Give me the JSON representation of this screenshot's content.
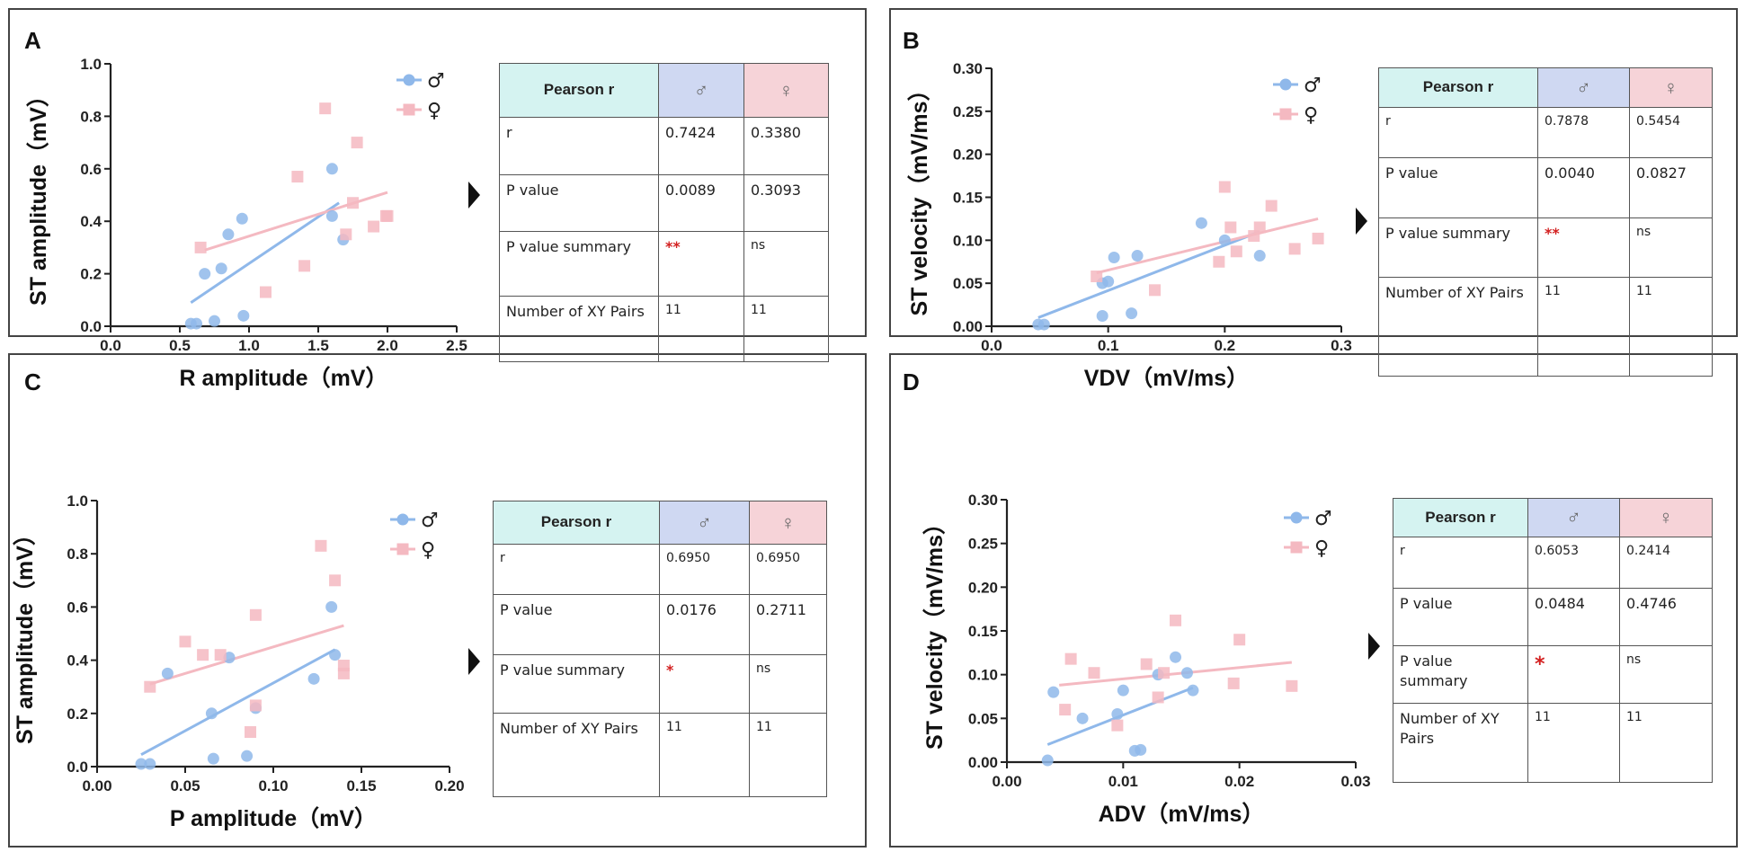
{
  "panels": [
    {
      "letter": "A",
      "chart_data": {
        "type": "scatter",
        "xlabel": "R amplitude（mV）",
        "ylabel": "ST amplitude（mV）",
        "xlim": [
          0.0,
          2.5
        ],
        "ylim": [
          0.0,
          1.0
        ],
        "xticks": [
          "0.0",
          "0.5",
          "1.0",
          "1.5",
          "2.0",
          "2.5"
        ],
        "yticks": [
          "0.0",
          "0.2",
          "0.4",
          "0.6",
          "0.8",
          "1.0"
        ],
        "legend": "top-right",
        "series": [
          {
            "name": "♂",
            "marker": "circle",
            "color": "#8fb8ea",
            "points": [
              [
                0.58,
                0.01
              ],
              [
                0.62,
                0.01
              ],
              [
                0.68,
                0.2
              ],
              [
                0.75,
                0.02
              ],
              [
                0.8,
                0.22
              ],
              [
                0.85,
                0.35
              ],
              [
                0.95,
                0.41
              ],
              [
                0.96,
                0.04
              ],
              [
                1.6,
                0.6
              ],
              [
                1.6,
                0.42
              ],
              [
                1.68,
                0.33
              ]
            ],
            "fit": [
              [
                0.58,
                0.09
              ],
              [
                1.65,
                0.47
              ]
            ]
          },
          {
            "name": "♀",
            "marker": "square",
            "color": "#f4b9c1",
            "points": [
              [
                0.65,
                0.3
              ],
              [
                1.12,
                0.13
              ],
              [
                1.35,
                0.57
              ],
              [
                1.4,
                0.23
              ],
              [
                1.55,
                0.83
              ],
              [
                1.7,
                0.35
              ],
              [
                1.75,
                0.47
              ],
              [
                1.78,
                0.7
              ],
              [
                1.9,
                0.38
              ],
              [
                1.99,
                0.42
              ],
              [
                2.0,
                0.42
              ]
            ],
            "fit": [
              [
                0.68,
                0.29
              ],
              [
                2.0,
                0.51
              ]
            ]
          }
        ]
      },
      "table": {
        "header": [
          "Pearson r",
          "♂",
          "♀"
        ],
        "rows": [
          [
            "r",
            "0.7424",
            "0.3380"
          ],
          [
            "P value",
            "0.0089",
            "0.3093"
          ],
          [
            "P value summary",
            "**",
            "ns"
          ],
          [
            "Number of XY Pairs",
            "11",
            "11"
          ]
        ]
      }
    },
    {
      "letter": "B",
      "chart_data": {
        "type": "scatter",
        "xlabel": "VDV（mV/ms）",
        "ylabel": "ST velocity（mV/ms）",
        "xlim": [
          0.0,
          0.3
        ],
        "ylim": [
          0.0,
          0.3
        ],
        "xticks": [
          "0.0",
          "0.1",
          "0.2",
          "0.3"
        ],
        "yticks": [
          "0.00",
          "0.05",
          "0.10",
          "0.15",
          "0.20",
          "0.25",
          "0.30"
        ],
        "legend": "top-right",
        "series": [
          {
            "name": "♂",
            "marker": "circle",
            "color": "#8fb8ea",
            "points": [
              [
                0.04,
                0.002
              ],
              [
                0.045,
                0.002
              ],
              [
                0.095,
                0.05
              ],
              [
                0.095,
                0.012
              ],
              [
                0.1,
                0.052
              ],
              [
                0.105,
                0.08
              ],
              [
                0.12,
                0.015
              ],
              [
                0.125,
                0.082
              ],
              [
                0.18,
                0.12
              ],
              [
                0.2,
                0.1
              ],
              [
                0.23,
                0.082
              ]
            ],
            "fit": [
              [
                0.04,
                0.01
              ],
              [
                0.23,
                0.11
              ]
            ]
          },
          {
            "name": "♀",
            "marker": "square",
            "color": "#f4b9c1",
            "points": [
              [
                0.09,
                0.058
              ],
              [
                0.14,
                0.042
              ],
              [
                0.195,
                0.075
              ],
              [
                0.2,
                0.162
              ],
              [
                0.205,
                0.115
              ],
              [
                0.21,
                0.087
              ],
              [
                0.225,
                0.105
              ],
              [
                0.23,
                0.115
              ],
              [
                0.24,
                0.14
              ],
              [
                0.26,
                0.09
              ],
              [
                0.28,
                0.102
              ]
            ],
            "fit": [
              [
                0.09,
                0.062
              ],
              [
                0.28,
                0.125
              ]
            ]
          }
        ]
      },
      "table": {
        "header": [
          "Pearson r",
          "♂",
          "♀"
        ],
        "rows": [
          [
            "r",
            "0.7878",
            "0.5454"
          ],
          [
            "P value",
            "0.0040",
            "0.0827"
          ],
          [
            "P value summary",
            "**",
            "ns"
          ],
          [
            "Number of XY Pairs",
            "11",
            "11"
          ]
        ]
      }
    },
    {
      "letter": "C",
      "chart_data": {
        "type": "scatter",
        "xlabel": "P amplitude（mV）",
        "ylabel": "ST amplitude（mV）",
        "xlim": [
          0.0,
          0.2
        ],
        "ylim": [
          0.0,
          1.0
        ],
        "xticks": [
          "0.00",
          "0.05",
          "0.10",
          "0.15",
          "0.20"
        ],
        "yticks": [
          "0.0",
          "0.2",
          "0.4",
          "0.6",
          "0.8",
          "1.0"
        ],
        "legend": "top-right",
        "series": [
          {
            "name": "♂",
            "marker": "circle",
            "color": "#8fb8ea",
            "points": [
              [
                0.025,
                0.01
              ],
              [
                0.03,
                0.01
              ],
              [
                0.04,
                0.35
              ],
              [
                0.065,
                0.2
              ],
              [
                0.066,
                0.03
              ],
              [
                0.075,
                0.41
              ],
              [
                0.085,
                0.04
              ],
              [
                0.09,
                0.22
              ],
              [
                0.123,
                0.33
              ],
              [
                0.133,
                0.6
              ],
              [
                0.135,
                0.42
              ]
            ],
            "fit": [
              [
                0.025,
                0.045
              ],
              [
                0.135,
                0.44
              ]
            ]
          },
          {
            "name": "♀",
            "marker": "square",
            "color": "#f4b9c1",
            "points": [
              [
                0.03,
                0.3
              ],
              [
                0.05,
                0.47
              ],
              [
                0.06,
                0.42
              ],
              [
                0.07,
                0.42
              ],
              [
                0.087,
                0.13
              ],
              [
                0.09,
                0.57
              ],
              [
                0.09,
                0.23
              ],
              [
                0.127,
                0.83
              ],
              [
                0.135,
                0.7
              ],
              [
                0.14,
                0.35
              ],
              [
                0.14,
                0.38
              ]
            ],
            "fit": [
              [
                0.03,
                0.31
              ],
              [
                0.14,
                0.53
              ]
            ]
          }
        ]
      },
      "table": {
        "header": [
          "Pearson r",
          "♂",
          "♀"
        ],
        "rows": [
          [
            "r",
            "0.6950",
            "0.6950"
          ],
          [
            "P value",
            "0.0176",
            "0.2711"
          ],
          [
            "P value summary",
            "*",
            "ns"
          ],
          [
            "Number of XY Pairs",
            "11",
            "11"
          ]
        ]
      }
    },
    {
      "letter": "D",
      "chart_data": {
        "type": "scatter",
        "xlabel": "ADV（mV/ms）",
        "ylabel": "ST velocity（mV/ms）",
        "xlim": [
          0.0,
          0.03
        ],
        "ylim": [
          0.0,
          0.3
        ],
        "xticks": [
          "0.00",
          "0.01",
          "0.02",
          "0.03"
        ],
        "yticks": [
          "0.00",
          "0.05",
          "0.10",
          "0.15",
          "0.20",
          "0.25",
          "0.30"
        ],
        "legend": "top-right",
        "series": [
          {
            "name": "♂",
            "marker": "circle",
            "color": "#8fb8ea",
            "points": [
              [
                0.0035,
                0.002
              ],
              [
                0.004,
                0.08
              ],
              [
                0.0065,
                0.05
              ],
              [
                0.0095,
                0.055
              ],
              [
                0.01,
                0.082
              ],
              [
                0.011,
                0.013
              ],
              [
                0.0115,
                0.014
              ],
              [
                0.013,
                0.1
              ],
              [
                0.0145,
                0.12
              ],
              [
                0.0155,
                0.102
              ],
              [
                0.016,
                0.082
              ]
            ],
            "fit": [
              [
                0.0035,
                0.02
              ],
              [
                0.016,
                0.085
              ]
            ]
          },
          {
            "name": "♀",
            "marker": "square",
            "color": "#f4b9c1",
            "points": [
              [
                0.005,
                0.06
              ],
              [
                0.0055,
                0.118
              ],
              [
                0.0075,
                0.102
              ],
              [
                0.0095,
                0.042
              ],
              [
                0.012,
                0.112
              ],
              [
                0.013,
                0.074
              ],
              [
                0.0135,
                0.102
              ],
              [
                0.0145,
                0.162
              ],
              [
                0.0195,
                0.09
              ],
              [
                0.02,
                0.14
              ],
              [
                0.0245,
                0.087
              ]
            ],
            "fit": [
              [
                0.0045,
                0.088
              ],
              [
                0.0245,
                0.114
              ]
            ]
          }
        ]
      },
      "table": {
        "header": [
          "Pearson r",
          "♂",
          "♀"
        ],
        "rows": [
          [
            "r",
            "0.6053",
            "0.2414"
          ],
          [
            "P value",
            "0.0484",
            "0.4746"
          ],
          [
            "P value summary",
            "*",
            "ns"
          ],
          [
            "Number of XY Pairs",
            "11",
            "11"
          ]
        ]
      }
    }
  ]
}
